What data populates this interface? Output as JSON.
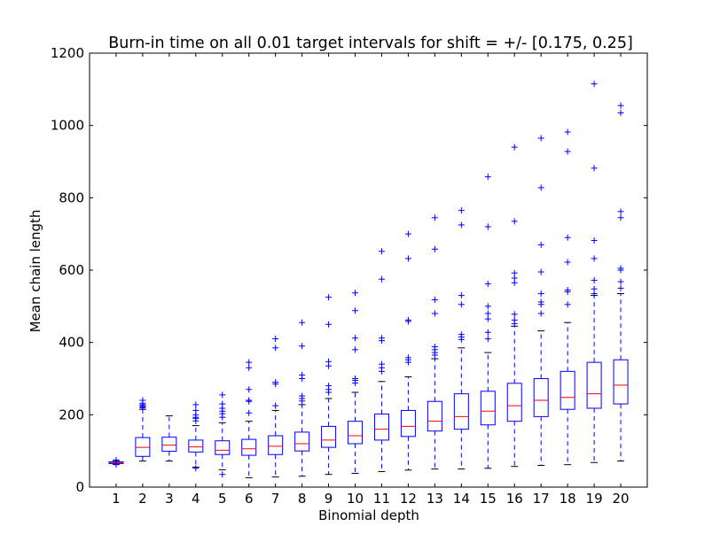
{
  "chart_data": {
    "type": "boxplot",
    "title": "Burn-in time on all 0.01 target intervals for shift = +/- [0.175, 0.25]",
    "xlabel": "Binomial depth",
    "ylabel": "Mean chain length",
    "ylim": [
      0,
      1200
    ],
    "yticks": [
      "0",
      "200",
      "400",
      "600",
      "800",
      "1000",
      "1200"
    ],
    "categories": [
      "1",
      "2",
      "3",
      "4",
      "5",
      "6",
      "7",
      "8",
      "9",
      "10",
      "11",
      "12",
      "13",
      "14",
      "15",
      "16",
      "17",
      "18",
      "19",
      "20"
    ],
    "grid": false,
    "box_color": "#0000ff",
    "median_color": "#ff0000",
    "flier_marker": "plus",
    "boxes": [
      {
        "category": "1",
        "whisker_low": 63,
        "q1": 65,
        "median": 67,
        "q3": 70,
        "whisker_high": 73,
        "fliers": [
          75,
          62
        ]
      },
      {
        "category": "2",
        "whisker_low": 72,
        "q1": 85,
        "median": 110,
        "q3": 137,
        "whisker_high": 215,
        "fliers": [
          219,
          222,
          225,
          228,
          232,
          240
        ]
      },
      {
        "category": "3",
        "whisker_low": 72,
        "q1": 99,
        "median": 116,
        "q3": 138,
        "whisker_high": 197,
        "fliers": []
      },
      {
        "category": "4",
        "whisker_low": 55,
        "q1": 97,
        "median": 111,
        "q3": 130,
        "whisker_high": 170,
        "fliers": [
          183,
          190,
          193,
          200,
          212,
          228,
          52
        ]
      },
      {
        "category": "5",
        "whisker_low": 48,
        "q1": 90,
        "median": 102,
        "q3": 128,
        "whisker_high": 178,
        "fliers": [
          193,
          203,
          210,
          218,
          230,
          255,
          35
        ]
      },
      {
        "category": "6",
        "whisker_low": 26,
        "q1": 88,
        "median": 106,
        "q3": 132,
        "whisker_high": 182,
        "fliers": [
          205,
          237,
          240,
          270,
          330,
          345
        ]
      },
      {
        "category": "7",
        "whisker_low": 28,
        "q1": 90,
        "median": 113,
        "q3": 142,
        "whisker_high": 212,
        "fliers": [
          225,
          285,
          290,
          385,
          410
        ]
      },
      {
        "category": "8",
        "whisker_low": 30,
        "q1": 100,
        "median": 120,
        "q3": 152,
        "whisker_high": 228,
        "fliers": [
          238,
          245,
          252,
          300,
          310,
          390,
          455
        ]
      },
      {
        "category": "9",
        "whisker_low": 35,
        "q1": 110,
        "median": 130,
        "q3": 168,
        "whisker_high": 245,
        "fliers": [
          262,
          270,
          280,
          335,
          347,
          450,
          525
        ]
      },
      {
        "category": "10",
        "whisker_low": 38,
        "q1": 120,
        "median": 142,
        "q3": 182,
        "whisker_high": 262,
        "fliers": [
          288,
          295,
          300,
          380,
          412,
          488,
          537
        ]
      },
      {
        "category": "11",
        "whisker_low": 43,
        "q1": 130,
        "median": 160,
        "q3": 202,
        "whisker_high": 292,
        "fliers": [
          320,
          330,
          340,
          405,
          412,
          575,
          652
        ]
      },
      {
        "category": "12",
        "whisker_low": 47,
        "q1": 140,
        "median": 168,
        "q3": 212,
        "whisker_high": 305,
        "fliers": [
          345,
          352,
          358,
          458,
          462,
          632,
          700
        ]
      },
      {
        "category": "13",
        "whisker_low": 50,
        "q1": 155,
        "median": 182,
        "q3": 237,
        "whisker_high": 355,
        "fliers": [
          365,
          372,
          380,
          388,
          480,
          518,
          658,
          745
        ]
      },
      {
        "category": "14",
        "whisker_low": 50,
        "q1": 160,
        "median": 195,
        "q3": 258,
        "whisker_high": 385,
        "fliers": [
          408,
          415,
          422,
          505,
          530,
          725,
          765
        ]
      },
      {
        "category": "15",
        "whisker_low": 52,
        "q1": 172,
        "median": 210,
        "q3": 265,
        "whisker_high": 372,
        "fliers": [
          410,
          428,
          465,
          480,
          500,
          562,
          720,
          858
        ]
      },
      {
        "category": "16",
        "whisker_low": 57,
        "q1": 182,
        "median": 225,
        "q3": 287,
        "whisker_high": 445,
        "fliers": [
          452,
          462,
          478,
          565,
          578,
          592,
          735,
          940
        ]
      },
      {
        "category": "17",
        "whisker_low": 60,
        "q1": 195,
        "median": 240,
        "q3": 300,
        "whisker_high": 432,
        "fliers": [
          480,
          505,
          512,
          535,
          595,
          670,
          828,
          965
        ]
      },
      {
        "category": "18",
        "whisker_low": 62,
        "q1": 215,
        "median": 248,
        "q3": 320,
        "whisker_high": 455,
        "fliers": [
          505,
          540,
          545,
          622,
          690,
          928,
          982
        ]
      },
      {
        "category": "19",
        "whisker_low": 68,
        "q1": 218,
        "median": 258,
        "q3": 345,
        "whisker_high": 530,
        "fliers": [
          535,
          548,
          572,
          632,
          682,
          882,
          1115
        ]
      },
      {
        "category": "20",
        "whisker_low": 72,
        "q1": 230,
        "median": 282,
        "q3": 352,
        "whisker_high": 535,
        "fliers": [
          550,
          568,
          600,
          605,
          745,
          762,
          1035,
          1055
        ]
      }
    ]
  }
}
